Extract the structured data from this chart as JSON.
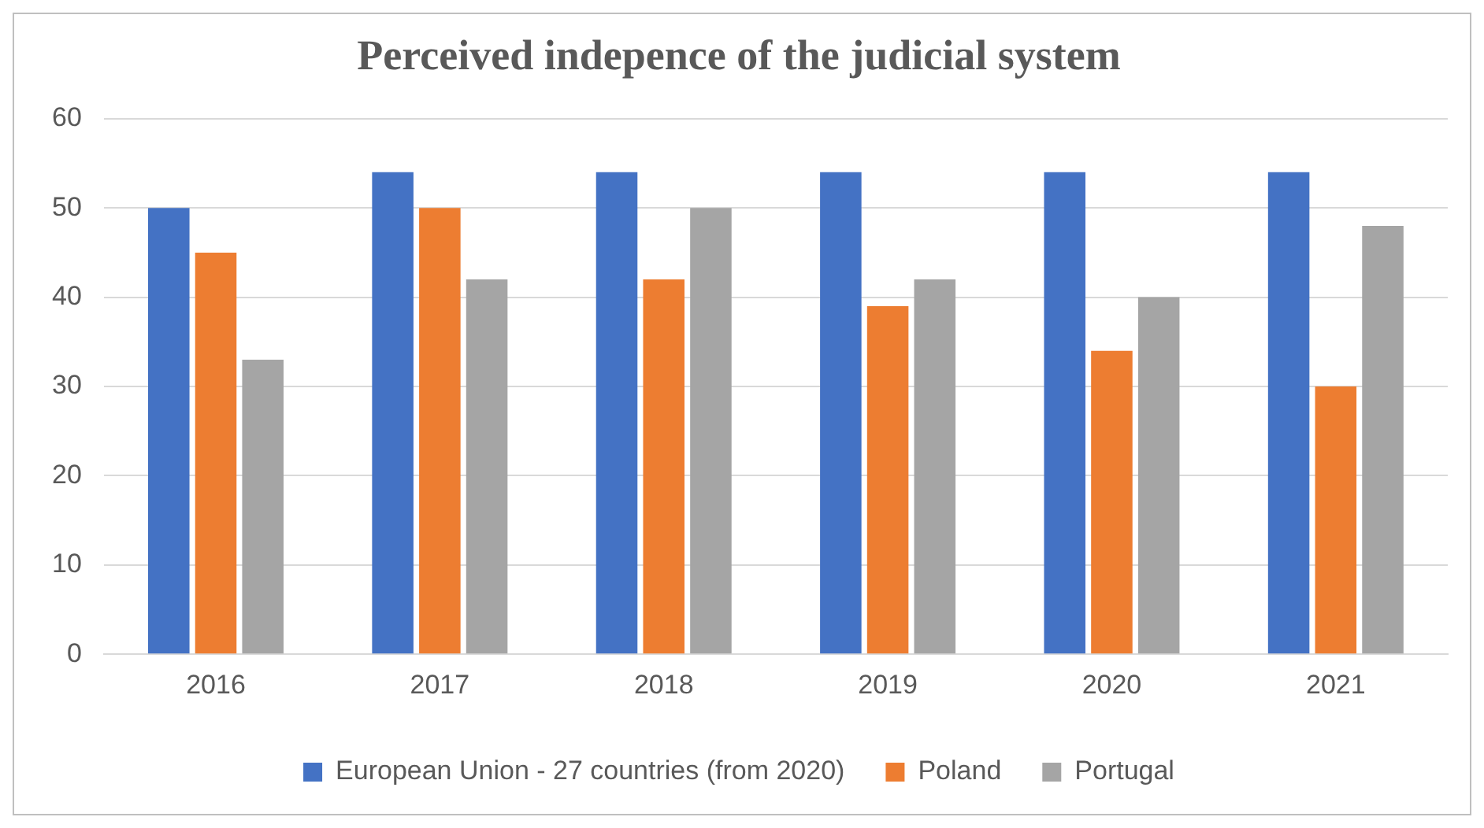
{
  "chart_data": {
    "type": "bar",
    "title": "Perceived indepence of the judicial system",
    "categories": [
      "2016",
      "2017",
      "2018",
      "2019",
      "2020",
      "2021"
    ],
    "series": [
      {
        "name": "European Union - 27 countries (from 2020)",
        "color": "#4472c4",
        "values": [
          50,
          54,
          54,
          54,
          54,
          54
        ]
      },
      {
        "name": "Poland",
        "color": "#ed7d31",
        "values": [
          45,
          50,
          42,
          39,
          34,
          30
        ]
      },
      {
        "name": "Portugal",
        "color": "#a5a5a5",
        "values": [
          33,
          42,
          50,
          42,
          40,
          48
        ]
      }
    ],
    "ylim": [
      0,
      60
    ],
    "yticks": [
      0,
      10,
      20,
      30,
      40,
      50,
      60
    ],
    "grid": "y",
    "legend": "bottom"
  }
}
